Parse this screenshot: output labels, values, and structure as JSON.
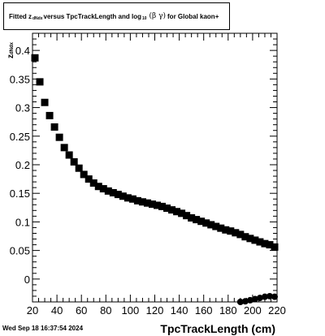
{
  "chart_data": {
    "type": "scatter",
    "title_parts": {
      "pre": "Fitted  z",
      "sub1": "dNdx",
      "mid": "  versus TpcTrackLength and log",
      "sub2": "10",
      "sym": "(β  γ)",
      "post": " for Global kaon+"
    },
    "xlabel": "TpcTrackLength (cm)",
    "ylabel_main": "z",
    "ylabel_sub": "dNdx",
    "xlim": [
      20,
      220
    ],
    "ylim": [
      -0.04,
      0.43
    ],
    "x_ticks": [
      20,
      40,
      60,
      80,
      100,
      120,
      140,
      160,
      180,
      200,
      220
    ],
    "y_ticks": [
      0,
      0.05,
      0.1,
      0.15,
      0.2,
      0.25,
      0.3,
      0.35,
      0.4
    ],
    "y_tick_labels": [
      "0",
      "0.05",
      "0.1",
      "0.15",
      "0.2",
      "0.25",
      "0.3",
      "0.35",
      "0.4"
    ],
    "grid": false,
    "legend": "none",
    "series": [
      {
        "marker": "square",
        "color": "#000000",
        "points": [
          [
            22,
            0.387
          ],
          [
            26,
            0.345
          ],
          [
            30,
            0.309
          ],
          [
            34,
            0.286
          ],
          [
            38,
            0.266
          ],
          [
            42,
            0.248
          ],
          [
            46,
            0.23
          ],
          [
            50,
            0.217
          ],
          [
            54,
            0.205
          ],
          [
            58,
            0.194
          ],
          [
            62,
            0.183
          ],
          [
            66,
            0.175
          ],
          [
            70,
            0.168
          ],
          [
            74,
            0.162
          ],
          [
            78,
            0.158
          ],
          [
            82,
            0.154
          ],
          [
            86,
            0.151
          ],
          [
            90,
            0.148
          ],
          [
            94,
            0.145
          ],
          [
            98,
            0.142
          ],
          [
            102,
            0.14
          ],
          [
            106,
            0.137
          ],
          [
            110,
            0.135
          ],
          [
            114,
            0.133
          ],
          [
            118,
            0.131
          ],
          [
            122,
            0.129
          ],
          [
            126,
            0.127
          ],
          [
            130,
            0.124
          ],
          [
            134,
            0.121
          ],
          [
            138,
            0.118
          ],
          [
            142,
            0.115
          ],
          [
            146,
            0.111
          ],
          [
            150,
            0.107
          ],
          [
            154,
            0.104
          ],
          [
            158,
            0.101
          ],
          [
            162,
            0.098
          ],
          [
            166,
            0.095
          ],
          [
            170,
            0.092
          ],
          [
            174,
            0.089
          ],
          [
            178,
            0.086
          ],
          [
            182,
            0.084
          ],
          [
            186,
            0.081
          ],
          [
            190,
            0.078
          ],
          [
            194,
            0.074
          ],
          [
            198,
            0.071
          ],
          [
            202,
            0.068
          ],
          [
            206,
            0.065
          ],
          [
            210,
            0.062
          ],
          [
            214,
            0.06
          ],
          [
            218,
            0.056
          ]
        ]
      },
      {
        "marker": "circle",
        "color": "#000000",
        "points": [
          [
            190,
            -0.04
          ],
          [
            194,
            -0.039
          ],
          [
            198,
            -0.037
          ],
          [
            202,
            -0.035
          ],
          [
            206,
            -0.033
          ],
          [
            210,
            -0.031
          ],
          [
            214,
            -0.03
          ],
          [
            218,
            -0.031
          ]
        ]
      }
    ]
  },
  "footer": {
    "timestamp": "Wed Sep 18 16:37:54 2024"
  }
}
